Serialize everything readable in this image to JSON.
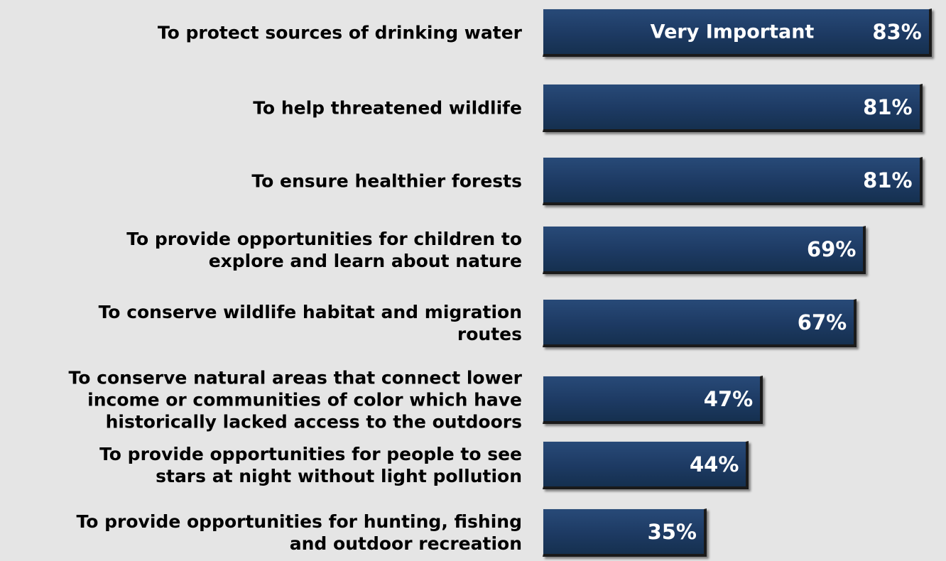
{
  "chart_data": {
    "type": "bar",
    "orientation": "horizontal",
    "categories": [
      "To protect sources of drinking water",
      "To help threatened wildlife",
      "To ensure healthier forests",
      "To provide opportunities for children to explore and learn about nature",
      "To conserve wildlife habitat and migration routes",
      "To conserve natural areas that connect lower income or communities of color which have historically lacked access to the outdoors",
      "To provide opportunities for people to see stars at night without light pollution",
      "To provide opportunities for hunting, fishing and outdoor recreation"
    ],
    "values": [
      83,
      81,
      81,
      69,
      67,
      47,
      44,
      35
    ],
    "value_labels": [
      "83%",
      "81%",
      "81%",
      "69%",
      "67%",
      "47%",
      "44%",
      "35%"
    ],
    "series": [
      {
        "name": "Very Important",
        "values": [
          83,
          81,
          81,
          69,
          67,
          47,
          44,
          35
        ]
      }
    ],
    "series_label": "Very Important",
    "bar_color": "#1f3d68",
    "background_color": "#e5e5e5",
    "xlim": [
      0,
      100
    ],
    "grid": false,
    "legend": "inside first bar"
  }
}
